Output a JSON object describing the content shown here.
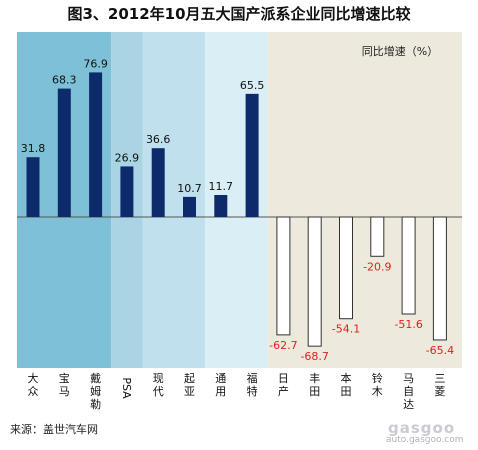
{
  "chart_data": {
    "type": "bar",
    "title": "图3、2012年10月五大国产派系企业同比增速比较",
    "ylabel": "同比增速（%）",
    "categories": [
      "大众",
      "宝马",
      "戴姆勒",
      "PSA",
      "现代",
      "起亚",
      "通用",
      "福特",
      "日产",
      "丰田",
      "本田",
      "铃木",
      "马自达",
      "三菱"
    ],
    "values": [
      31.8,
      68.3,
      76.9,
      26.9,
      36.6,
      10.7,
      11.7,
      65.5,
      -62.7,
      -68.7,
      -54.1,
      -20.9,
      -51.6,
      -65.4
    ],
    "value_labels": [
      "31.8",
      "68.3",
      "76.9",
      "26.9",
      "36.6",
      "10.7",
      "11.7",
      "65.5",
      "-62.7",
      "-68.7",
      "-54.1",
      "-20.9",
      "-51.6",
      "-65.4"
    ],
    "ylim": [
      -80,
      100
    ],
    "grid": false,
    "colors": {
      "positive_bar": "#0d2a6b",
      "negative_bar": "#ffffff",
      "negative_label": "#e02020",
      "band_german": "#7ec1d6",
      "band_french": "#a9d4e3",
      "band_korean": "#bfe0ec",
      "band_american": "#daeef5",
      "band_japanese": "#ede9dc"
    }
  },
  "source": "来源：盖世汽车网",
  "watermark": {
    "brand": "gasgoo",
    "url": "auto.gasgoo.com"
  }
}
